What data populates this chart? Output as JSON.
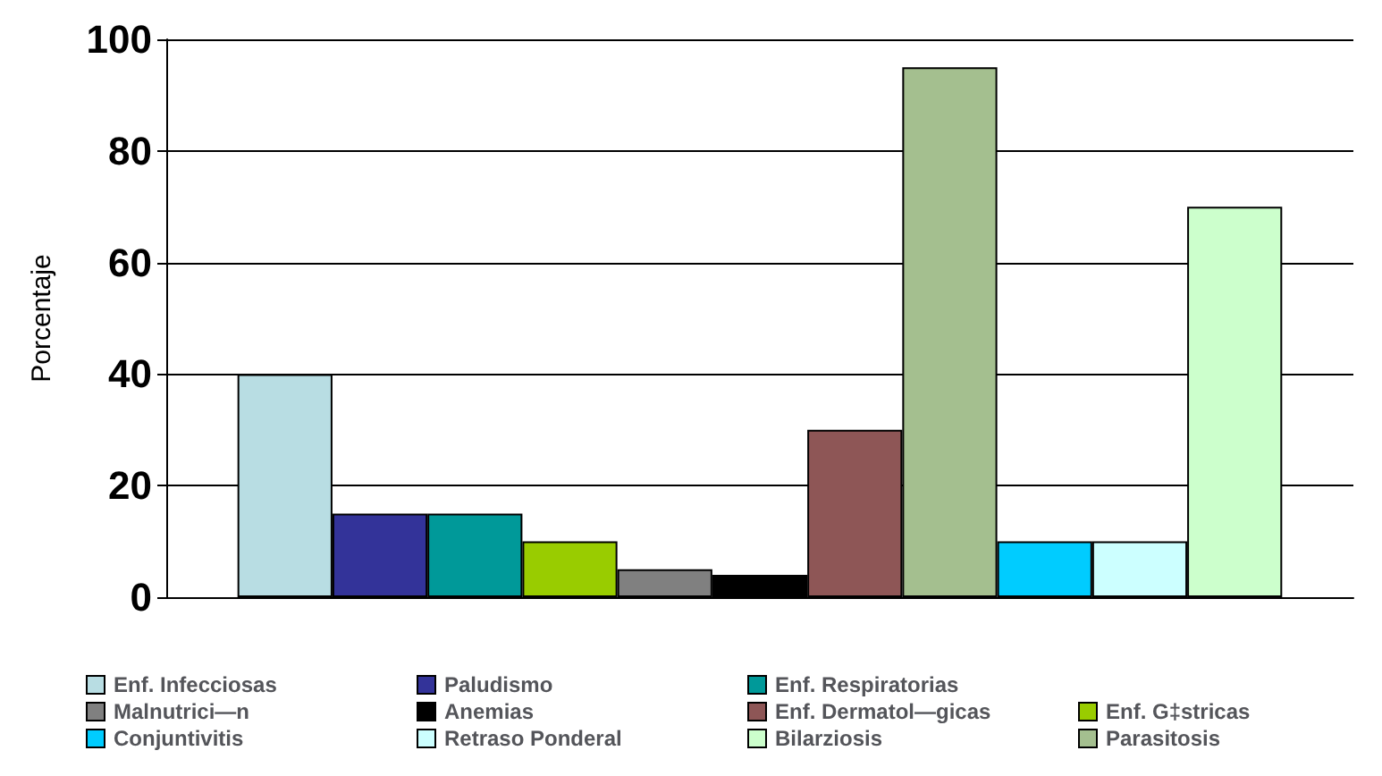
{
  "chart_data": {
    "type": "bar",
    "ylabel": "Porcentaje",
    "categories": [
      null
    ],
    "ylim": [
      0,
      100
    ],
    "yticks": [
      0,
      20,
      40,
      60,
      80,
      100
    ],
    "grid": "y",
    "legend": "bottom",
    "series": [
      {
        "name": "Enf. Infecciosas",
        "color": "#b8dde3",
        "values": [
          40
        ]
      },
      {
        "name": "Paludismo",
        "color": "#333399",
        "values": [
          15
        ]
      },
      {
        "name": "Enf. Respiratorias",
        "color": "#009999",
        "values": [
          15
        ]
      },
      {
        "name": "Enf. G‡stricas",
        "color": "#99cc00",
        "values": [
          10
        ]
      },
      {
        "name": "Malnutrici—n",
        "color": "#808080",
        "values": [
          5
        ]
      },
      {
        "name": "Anemias",
        "color": "#000000",
        "values": [
          4
        ]
      },
      {
        "name": "Enf. Dermatol—gicas",
        "color": "#8e5656",
        "values": [
          30
        ]
      },
      {
        "name": "Parasitosis",
        "color": "#a4bf8f",
        "values": [
          95
        ]
      },
      {
        "name": "Conjuntivitis",
        "color": "#00ccff",
        "values": [
          10
        ]
      },
      {
        "name": "Retraso Ponderal",
        "color": "#ccffff",
        "values": [
          10
        ]
      },
      {
        "name": "Bilarziosis",
        "color": "#ccffcc",
        "values": [
          70
        ]
      }
    ]
  }
}
